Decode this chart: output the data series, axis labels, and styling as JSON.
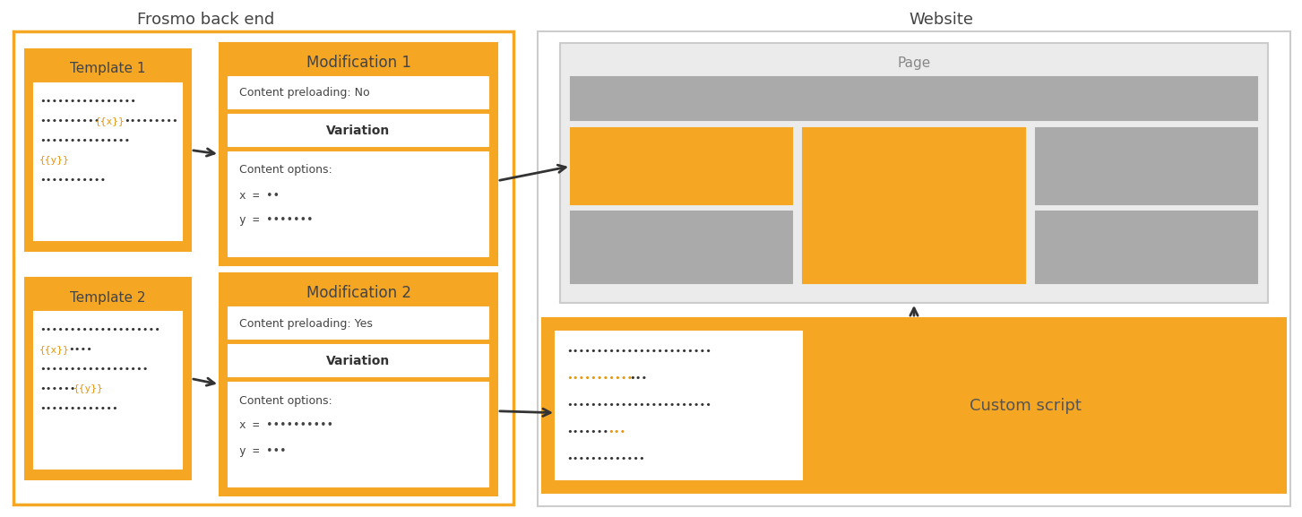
{
  "bg_color": "#ffffff",
  "orange": "#F5A623",
  "gray_page_bg": "#EBEBEB",
  "gray_banner": "#AAAAAA",
  "gray_col": "#BBBBBB",
  "text_dark": "#444444",
  "text_mid": "#666666",
  "text_orange": "#E8960A",
  "frosmo_label": "Frosmo back end",
  "website_label": "Website",
  "page_label": "Page",
  "custom_script_label": "Custom script",
  "template1_label": "Template 1",
  "template2_label": "Template 2",
  "mod1_label": "Modification 1",
  "mod2_label": "Modification 2",
  "mod1_preload": "Content preloading: No",
  "mod2_preload": "Content preloading: Yes",
  "variation_label": "Variation",
  "content_options_label": "Content options:",
  "mod1_x": "x = ••",
  "mod1_y": "y = •••••••",
  "mod2_x": "x = ••••••••••",
  "mod2_y": "y = •••",
  "t1_line1": "••••••••••••••••",
  "t1_line2_pre": "••••••••••",
  "t1_line2_orange": "{{x}}",
  "t1_line2_post": "•••••••••",
  "t1_line3": "•••••••••••••••",
  "t1_line4_orange": "{{y}}",
  "t1_line5": "•••••••••••",
  "t2_line1": "••••••••••••••••••••",
  "t2_line2_orange": "{{x}}",
  "t2_line2_post": "••••",
  "t2_line3": "••••••••••••••••••",
  "t2_line4_pre": "••••••",
  "t2_line4_orange": "{{y}}",
  "t2_line5": "•••••••••••••",
  "cs_line1": "••••••••••••••••••••••••",
  "cs_line2_orange": "•••••••••••",
  "cs_line2_post": "•••",
  "cs_line3": "••••••••••••••••••••••••",
  "cs_line4_pre": "•••••••",
  "cs_line4_orange": "•••",
  "cs_line5": "•••••••••••••"
}
